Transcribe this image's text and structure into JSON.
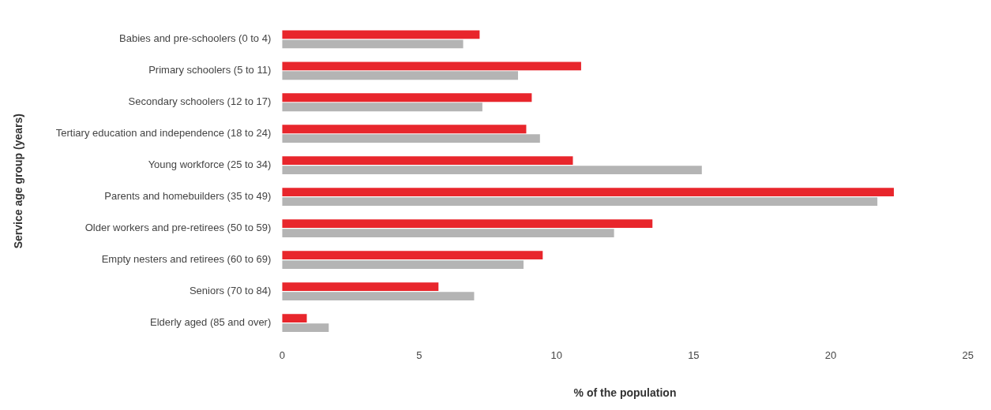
{
  "chart_data": {
    "type": "bar",
    "orientation": "horizontal",
    "xlabel": "% of the population",
    "ylabel": "Service age group (years)",
    "categories": [
      "Babies and pre-schoolers (0 to 4)",
      "Primary schoolers (5 to 11)",
      "Secondary schoolers (12 to 17)",
      "Tertiary education and independence (18 to 24)",
      "Young workforce (25 to 34)",
      "Parents and homebuilders (35 to 49)",
      "Older workers and pre-retirees (50 to 59)",
      "Empty nesters and retirees (60 to 69)",
      "Seniors (70 to 84)",
      "Elderly aged (85 and over)"
    ],
    "series": [
      {
        "color": "#e8262c",
        "values": [
          7.2,
          10.9,
          9.1,
          8.9,
          10.6,
          22.3,
          13.5,
          9.5,
          5.7,
          0.9
        ]
      },
      {
        "color": "#b4b4b4",
        "values": [
          6.6,
          8.6,
          7.3,
          9.4,
          15.3,
          21.7,
          12.1,
          8.8,
          7.0,
          1.7
        ]
      }
    ],
    "xlim": [
      0,
      25
    ],
    "xticks": [
      0,
      5,
      10,
      15,
      20,
      25
    ],
    "grid": false,
    "legend": false
  }
}
